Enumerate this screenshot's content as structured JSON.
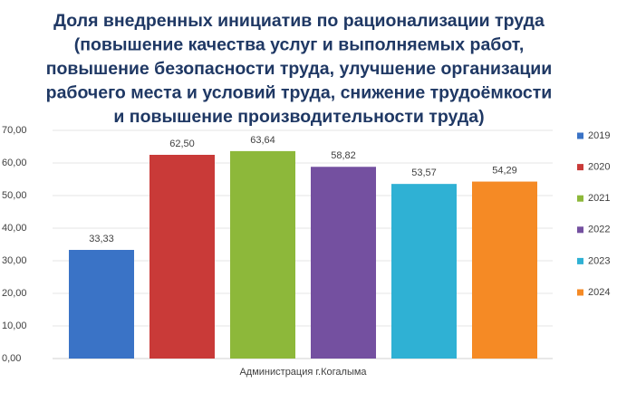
{
  "chart_data": {
    "type": "bar",
    "title": [
      "Доля внедренных инициатив по рационализации труда",
      "(повышение качества услуг и выполняемых работ,",
      "повышение безопасности труда, улучшение организации",
      "рабочего места и условий труда, снижение трудоёмкости",
      "и повышение производительности труда)"
    ],
    "categories": [
      "Администрация г.Когалыма"
    ],
    "series": [
      {
        "name": "2019",
        "color": "#3a73c6",
        "values": [
          33.33
        ],
        "value_labels": [
          "33,33"
        ]
      },
      {
        "name": "2020",
        "color": "#c93a38",
        "values": [
          62.5
        ],
        "value_labels": [
          "62,50"
        ]
      },
      {
        "name": "2021",
        "color": "#8db83a",
        "values": [
          63.64
        ],
        "value_labels": [
          "63,64"
        ]
      },
      {
        "name": "2022",
        "color": "#7450a0",
        "values": [
          58.82
        ],
        "value_labels": [
          "58,82"
        ]
      },
      {
        "name": "2023",
        "color": "#2fb1d4",
        "values": [
          53.57
        ],
        "value_labels": [
          "53,57"
        ]
      },
      {
        "name": "2024",
        "color": "#f58a25",
        "values": [
          54.29
        ],
        "value_labels": [
          "54,29"
        ]
      }
    ],
    "ylim": [
      0,
      70
    ],
    "yticks": [
      {
        "value": 0,
        "label": "0,00"
      },
      {
        "value": 10,
        "label": "10,00"
      },
      {
        "value": 20,
        "label": "20,00"
      },
      {
        "value": 30,
        "label": "30,00"
      },
      {
        "value": 40,
        "label": "40,00"
      },
      {
        "value": 50,
        "label": "50,00"
      },
      {
        "value": 60,
        "label": "60,00"
      },
      {
        "value": 70,
        "label": "70,00"
      }
    ],
    "grid": true,
    "legend": "right"
  }
}
